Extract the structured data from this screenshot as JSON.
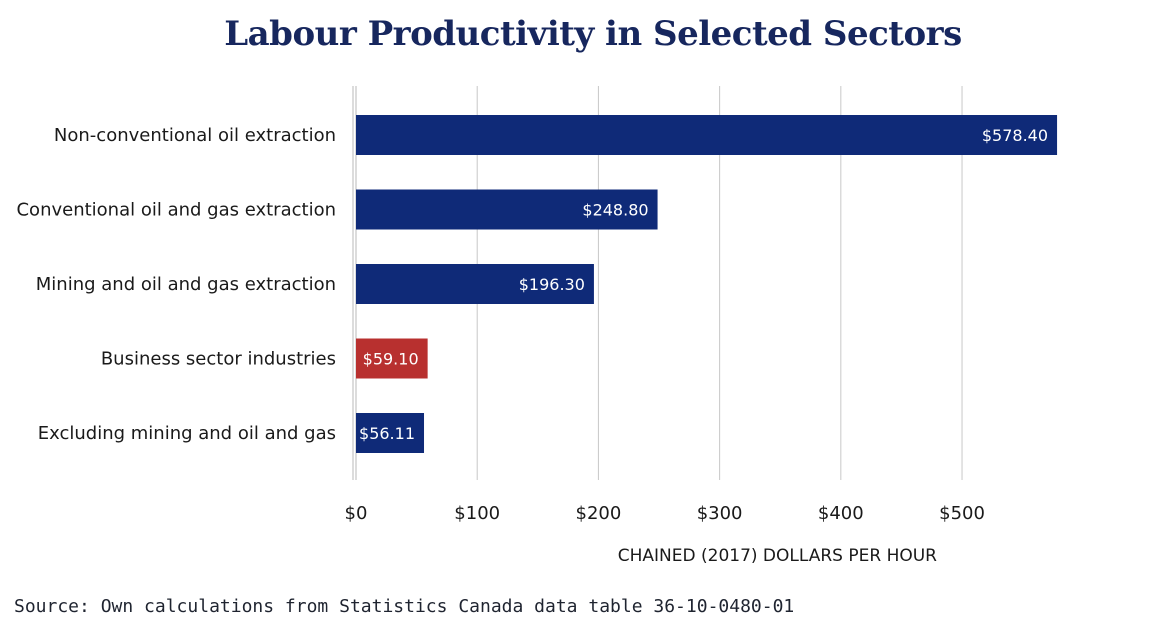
{
  "chart_data": {
    "type": "bar",
    "orientation": "horizontal",
    "title": "Labour Productivity in Selected Sectors",
    "xlabel": "CHAINED (2017) DOLLARS PER HOUR",
    "ylabel": "",
    "categories": [
      "Non-conventional oil extraction",
      "Conventional oil and gas extraction",
      "Mining and oil and gas extraction",
      "Business sector industries",
      "Excluding mining and oil and gas"
    ],
    "values": [
      578.4,
      248.8,
      196.3,
      59.1,
      56.11
    ],
    "value_labels": [
      "$578.40",
      "$248.80",
      "$196.30",
      "$59.10",
      "$56.11"
    ],
    "bar_colors": [
      "#0f2a78",
      "#0f2a78",
      "#0f2a78",
      "#b8302f",
      "#0f2a78"
    ],
    "xlim": [
      0,
      580
    ],
    "xticks": [
      0,
      100,
      200,
      300,
      400,
      500
    ],
    "xtick_labels": [
      "$0",
      "$100",
      "$200",
      "$300",
      "$400",
      "$500"
    ],
    "grid": true
  },
  "source": "Source: Own calculations from Statistics Canada data table 36-10-0480-01"
}
